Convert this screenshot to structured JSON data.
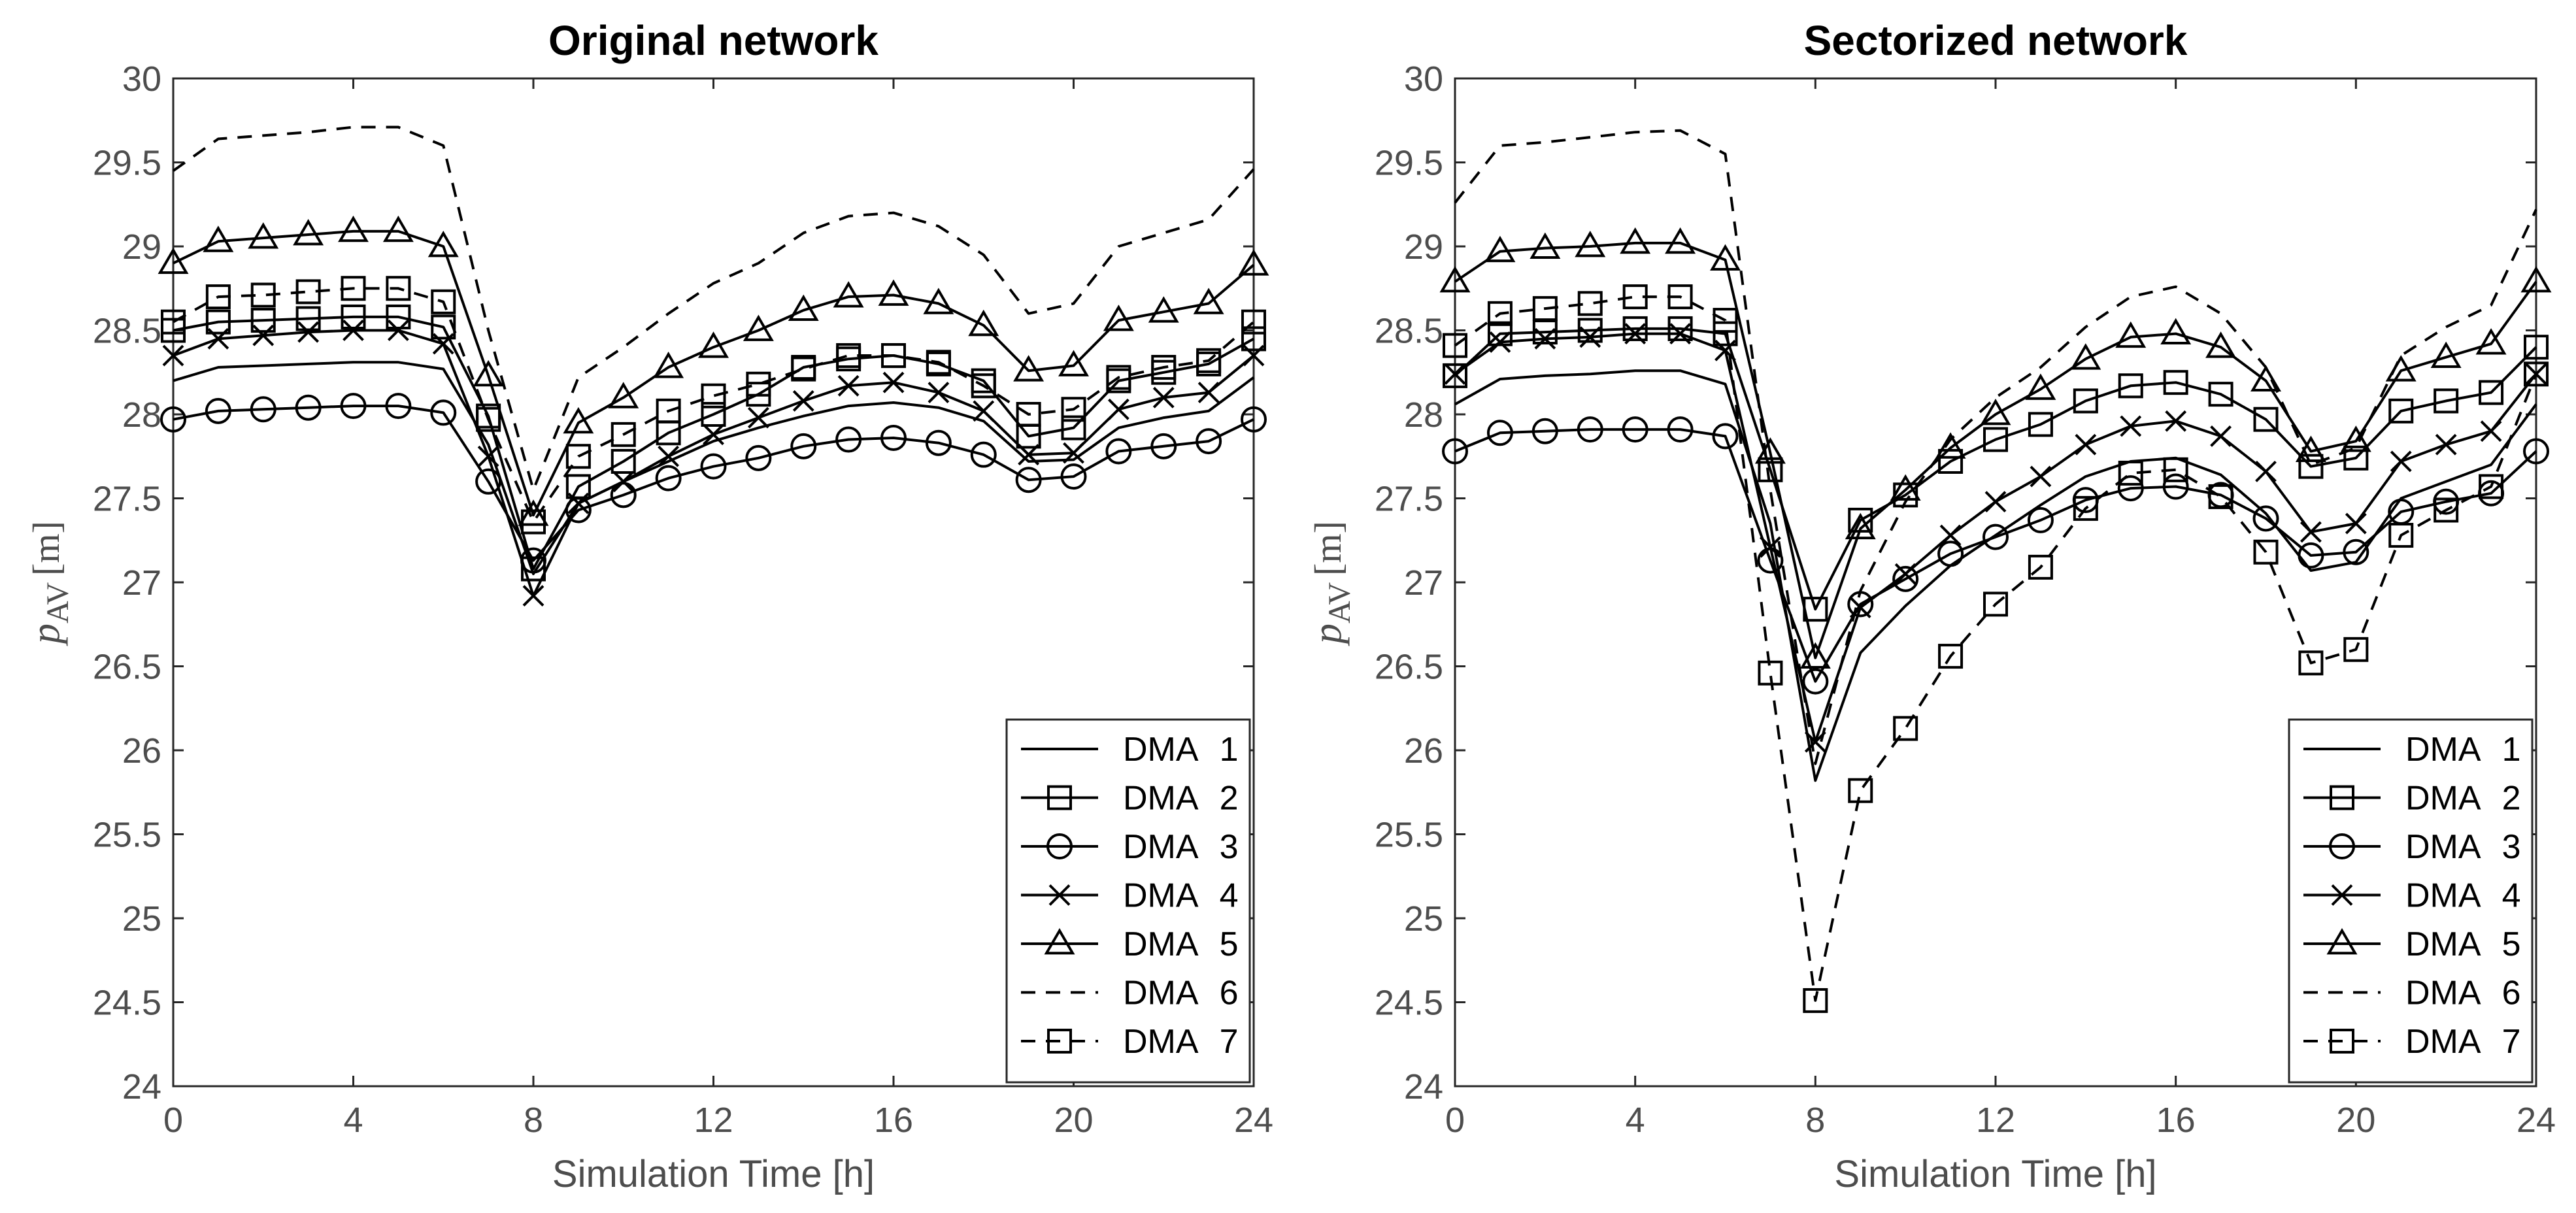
{
  "chart_data": [
    {
      "type": "line",
      "title": "Original network",
      "xlabel": "Simulation Time [h]",
      "ylabel": {
        "symbol": "p",
        "subscript": "AV",
        "unit": "[m]"
      },
      "xlim": [
        0,
        24
      ],
      "ylim": [
        24,
        30
      ],
      "xticks": [
        "0",
        "4",
        "8",
        "12",
        "16",
        "20",
        "24"
      ],
      "yticks": [
        "24",
        "24.5",
        "25",
        "25.5",
        "26",
        "26.5",
        "27",
        "27.5",
        "28",
        "28.5",
        "29",
        "29.5",
        "30"
      ],
      "legend_position": "bottom-right",
      "x": [
        0,
        1,
        2,
        3,
        4,
        5,
        6,
        7,
        8,
        9,
        10,
        11,
        12,
        13,
        14,
        15,
        16,
        17,
        18,
        19,
        20,
        21,
        22,
        23,
        24
      ],
      "series": [
        {
          "name": "DMA",
          "id": "1",
          "style": "solid",
          "marker": "none",
          "values": [
            28.2,
            28.28,
            28.29,
            28.3,
            28.31,
            28.31,
            28.27,
            27.82,
            27.05,
            27.47,
            27.6,
            27.72,
            27.84,
            27.92,
            27.99,
            28.05,
            28.07,
            28.04,
            27.96,
            27.72,
            27.73,
            27.92,
            27.98,
            28.02,
            28.22
          ]
        },
        {
          "name": "DMA",
          "id": "2",
          "style": "solid",
          "marker": "square",
          "values": [
            28.5,
            28.55,
            28.56,
            28.57,
            28.58,
            28.58,
            28.52,
            27.99,
            27.08,
            27.57,
            27.72,
            27.89,
            28.0,
            28.12,
            28.28,
            28.33,
            28.35,
            28.3,
            28.2,
            27.87,
            27.92,
            28.2,
            28.25,
            28.3,
            28.45
          ]
        },
        {
          "name": "DMA",
          "id": "3",
          "style": "solid",
          "marker": "circle",
          "values": [
            27.97,
            28.02,
            28.03,
            28.04,
            28.05,
            28.05,
            28.01,
            27.6,
            27.13,
            27.43,
            27.52,
            27.62,
            27.69,
            27.74,
            27.81,
            27.85,
            27.86,
            27.83,
            27.76,
            27.61,
            27.63,
            27.78,
            27.81,
            27.84,
            27.97
          ]
        },
        {
          "name": "DMA",
          "id": "4",
          "style": "solid",
          "marker": "x",
          "values": [
            28.35,
            28.45,
            28.47,
            28.49,
            28.5,
            28.5,
            28.42,
            27.75,
            26.92,
            27.47,
            27.6,
            27.75,
            27.88,
            27.98,
            28.08,
            28.17,
            28.19,
            28.13,
            28.02,
            27.76,
            27.77,
            28.03,
            28.1,
            28.13,
            28.35
          ]
        },
        {
          "name": "DMA",
          "id": "5",
          "style": "solid",
          "marker": "triangle",
          "values": [
            28.9,
            29.03,
            29.05,
            29.07,
            29.09,
            29.09,
            29.0,
            28.23,
            27.4,
            27.95,
            28.1,
            28.28,
            28.4,
            28.5,
            28.62,
            28.7,
            28.71,
            28.66,
            28.53,
            28.26,
            28.29,
            28.56,
            28.61,
            28.66,
            28.89
          ]
        },
        {
          "name": "DMA",
          "id": "6",
          "style": "dashed",
          "marker": "none",
          "values": [
            29.45,
            29.64,
            29.66,
            29.68,
            29.71,
            29.71,
            29.6,
            28.5,
            27.55,
            28.22,
            28.4,
            28.6,
            28.78,
            28.9,
            29.08,
            29.18,
            29.2,
            29.12,
            28.95,
            28.6,
            28.66,
            29.0,
            29.08,
            29.16,
            29.46
          ]
        },
        {
          "name": "DMA",
          "id": "7",
          "style": "dashed",
          "marker": "square",
          "values": [
            28.55,
            28.7,
            28.71,
            28.73,
            28.75,
            28.75,
            28.67,
            27.97,
            27.36,
            27.75,
            27.88,
            28.02,
            28.11,
            28.18,
            28.27,
            28.35,
            28.35,
            28.31,
            28.17,
            28.0,
            28.03,
            28.22,
            28.28,
            28.32,
            28.55
          ]
        }
      ]
    },
    {
      "type": "line",
      "title": "Sectorized network",
      "xlabel": "Simulation Time [h]",
      "ylabel": {
        "symbol": "p",
        "subscript": "AV",
        "unit": "[m]"
      },
      "xlim": [
        0,
        24
      ],
      "ylim": [
        24,
        30
      ],
      "xticks": [
        "0",
        "4",
        "8",
        "12",
        "16",
        "20",
        "24"
      ],
      "yticks": [
        "24",
        "24.5",
        "25",
        "25.5",
        "26",
        "26.5",
        "27",
        "27.5",
        "28",
        "28.5",
        "29",
        "29.5",
        "30"
      ],
      "legend_position": "bottom-right",
      "x": [
        0,
        1,
        2,
        3,
        4,
        5,
        6,
        7,
        8,
        9,
        10,
        11,
        12,
        13,
        14,
        15,
        16,
        17,
        18,
        19,
        20,
        21,
        22,
        23,
        24
      ],
      "series": [
        {
          "name": "DMA",
          "id": "1",
          "style": "solid",
          "marker": "none",
          "values": [
            28.06,
            28.21,
            28.23,
            28.24,
            28.26,
            28.26,
            28.18,
            27.35,
            25.82,
            26.58,
            26.86,
            27.1,
            27.28,
            27.46,
            27.63,
            27.72,
            27.74,
            27.64,
            27.41,
            27.07,
            27.12,
            27.5,
            27.6,
            27.7,
            28.06
          ]
        },
        {
          "name": "DMA",
          "id": "2",
          "style": "solid",
          "marker": "square",
          "values": [
            28.23,
            28.48,
            28.49,
            28.5,
            28.51,
            28.51,
            28.48,
            27.67,
            26.84,
            27.37,
            27.52,
            27.72,
            27.85,
            27.94,
            28.08,
            28.17,
            28.19,
            28.12,
            27.97,
            27.69,
            27.74,
            28.02,
            28.08,
            28.13,
            28.4
          ]
        },
        {
          "name": "DMA",
          "id": "3",
          "style": "solid",
          "marker": "circle",
          "values": [
            27.78,
            27.89,
            27.9,
            27.91,
            27.91,
            27.91,
            27.87,
            27.13,
            26.41,
            26.87,
            27.02,
            27.17,
            27.27,
            27.37,
            27.49,
            27.56,
            27.57,
            27.52,
            27.38,
            27.16,
            27.18,
            27.42,
            27.48,
            27.53,
            27.78
          ]
        },
        {
          "name": "DMA",
          "id": "4",
          "style": "solid",
          "marker": "x",
          "values": [
            28.24,
            28.43,
            28.45,
            28.46,
            28.48,
            28.48,
            28.38,
            27.21,
            26.05,
            26.85,
            27.05,
            27.28,
            27.48,
            27.63,
            27.82,
            27.93,
            27.96,
            27.87,
            27.66,
            27.3,
            27.35,
            27.72,
            27.82,
            27.9,
            28.24
          ]
        },
        {
          "name": "DMA",
          "id": "5",
          "style": "solid",
          "marker": "triangle",
          "values": [
            28.79,
            28.97,
            28.99,
            29.0,
            29.02,
            29.02,
            28.92,
            27.77,
            26.55,
            27.32,
            27.55,
            27.8,
            28.0,
            28.15,
            28.33,
            28.46,
            28.48,
            28.4,
            28.2,
            27.78,
            27.84,
            28.26,
            28.34,
            28.42,
            28.79
          ]
        },
        {
          "name": "DMA",
          "id": "6",
          "style": "dashed",
          "marker": "none",
          "values": [
            29.26,
            29.6,
            29.62,
            29.65,
            29.68,
            29.69,
            29.55,
            27.55,
            25.92,
            26.95,
            27.48,
            27.85,
            28.1,
            28.28,
            28.52,
            28.7,
            28.76,
            28.6,
            28.28,
            27.7,
            27.8,
            28.35,
            28.52,
            28.65,
            29.22
          ]
        },
        {
          "name": "DMA",
          "id": "7",
          "style": "dashed",
          "marker": "square",
          "values": [
            28.41,
            28.6,
            28.63,
            28.66,
            28.7,
            28.7,
            28.56,
            26.46,
            24.51,
            25.76,
            26.13,
            26.56,
            26.87,
            27.09,
            27.44,
            27.65,
            27.67,
            27.51,
            27.18,
            26.52,
            26.6,
            27.28,
            27.43,
            27.57,
            28.24
          ]
        }
      ]
    }
  ]
}
